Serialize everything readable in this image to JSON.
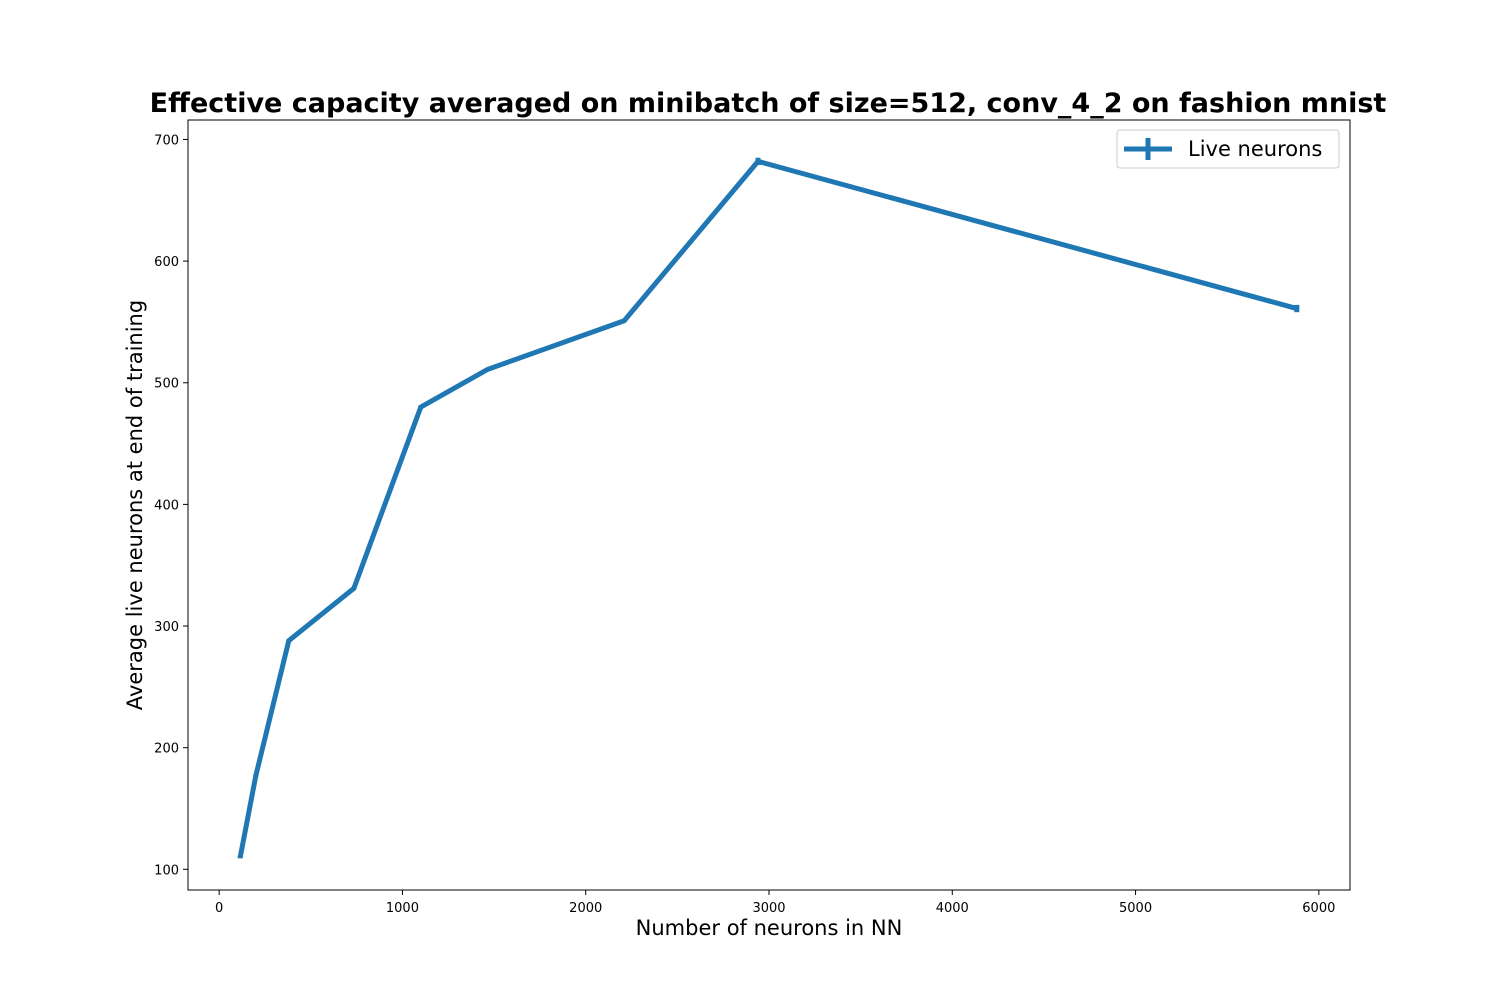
{
  "chart_data": {
    "type": "line",
    "title": "Effective capacity averaged on minibatch of size=512, conv_4_2 on fashion mnist",
    "xlabel": "Number of neurons in NN",
    "ylabel": "Average live neurons at end of training",
    "xlim": [
      -170,
      6170
    ],
    "ylim": [
      83,
      716
    ],
    "xticks": [
      0,
      1000,
      2000,
      3000,
      4000,
      5000,
      6000
    ],
    "yticks": [
      100,
      200,
      300,
      400,
      500,
      600,
      700
    ],
    "grid": false,
    "legend_position": "upper right",
    "series": [
      {
        "name": "Live neurons",
        "color": "#1f77b4",
        "error_bars": true,
        "x": [
          115,
          200,
          380,
          735,
          1100,
          1465,
          2210,
          2940,
          5880
        ],
        "y": [
          110,
          177,
          288,
          331,
          480,
          511,
          551,
          682,
          561
        ],
        "yerr": [
          1,
          1,
          1,
          1,
          1,
          1,
          1,
          3,
          3
        ]
      }
    ]
  }
}
